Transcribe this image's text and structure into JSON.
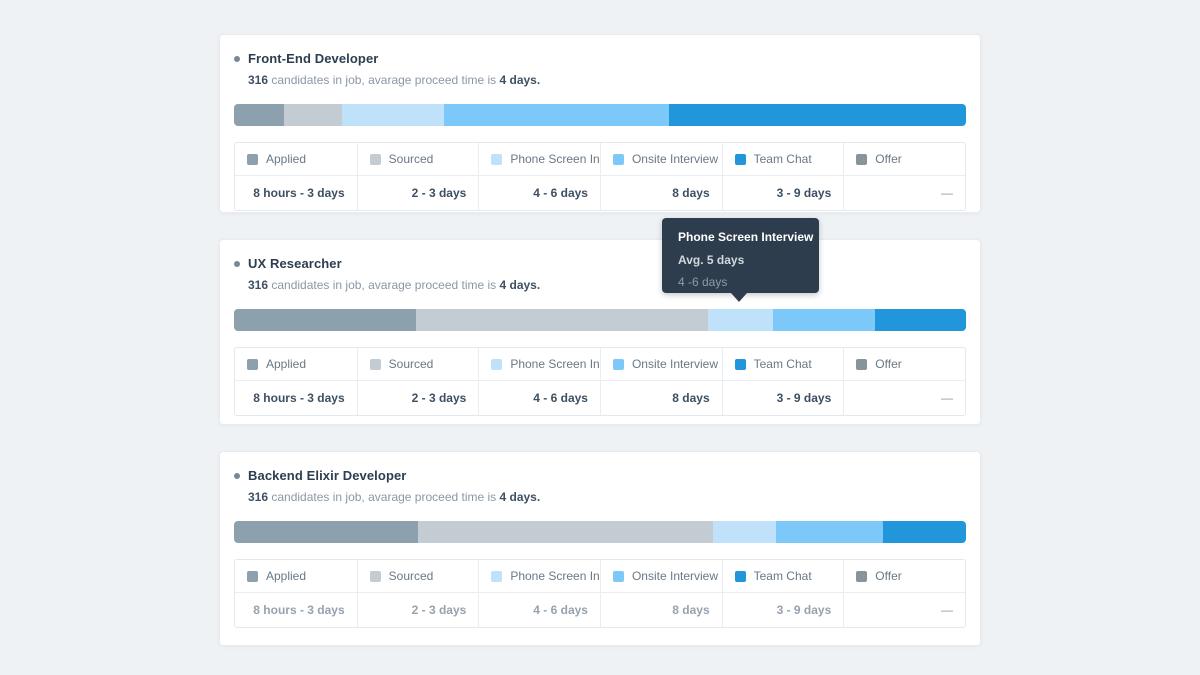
{
  "page": {
    "background": "#eff2f5"
  },
  "colors": {
    "applied": "#8CA1AD",
    "sourced": "#C3CCD3",
    "phone_screen": "#BFE2FA",
    "onsite": "#7CC8F8",
    "team_chat": "#2196DB",
    "offer": "#879599"
  },
  "tooltip": {
    "title": "Phone Screen Interview",
    "avg": "Avg. 5 days",
    "range": "4 -6 days"
  },
  "cards": [
    {
      "title": "Front-End Developer",
      "count": "316",
      "sub_mid": " candidates in job, avarage proceed time is ",
      "sub_bold": "4 days.",
      "bar": [
        {
          "name": "applied",
          "w": "6.8%",
          "color": "#8CA1AD"
        },
        {
          "name": "sourced",
          "w": "7.9%",
          "color": "#C3CCD3"
        },
        {
          "name": "phone-screen",
          "w": "14.0%",
          "color": "#BFE2FA"
        },
        {
          "name": "onsite",
          "w": "30.7%",
          "color": "#7CC8F8"
        },
        {
          "name": "team-chat",
          "w": "40.6%",
          "color": "#2196DB"
        }
      ],
      "legend": [
        {
          "label": "Applied",
          "color": "#8CA1AD"
        },
        {
          "label": "Sourced",
          "color": "#C3CCD3"
        },
        {
          "label": "Phone Screen In...",
          "color": "#BFE2FA"
        },
        {
          "label": "Onsite Interview",
          "color": "#7CC8F8"
        },
        {
          "label": "Team Chat",
          "color": "#2196DB"
        },
        {
          "label": "Offer",
          "color": "#879599"
        }
      ],
      "durations": [
        "8 hours - 3 days",
        "2 - 3 days",
        "4 - 6 days",
        "8 days",
        "3 - 9 days",
        "—"
      ]
    },
    {
      "title": "UX Researcher",
      "count": "316",
      "sub_mid": " candidates in job, avarage proceed time is ",
      "sub_bold": "4 days.",
      "bar": [
        {
          "name": "applied",
          "w": "24.8%",
          "color": "#8CA1AD"
        },
        {
          "name": "sourced",
          "w": "40.0%",
          "color": "#C3CCD3"
        },
        {
          "name": "phone-screen",
          "w": "8.9%",
          "color": "#BFE2FA"
        },
        {
          "name": "onsite",
          "w": "13.9%",
          "color": "#7CC8F8"
        },
        {
          "name": "team-chat",
          "w": "12.4%",
          "color": "#2196DB"
        }
      ],
      "legend": [
        {
          "label": "Applied",
          "color": "#8CA1AD"
        },
        {
          "label": "Sourced",
          "color": "#C3CCD3"
        },
        {
          "label": "Phone Screen In...",
          "color": "#BFE2FA"
        },
        {
          "label": "Onsite Interview",
          "color": "#7CC8F8"
        },
        {
          "label": "Team Chat",
          "color": "#2196DB"
        },
        {
          "label": "Offer",
          "color": "#879599"
        }
      ],
      "durations": [
        "8 hours - 3 days",
        "2 - 3 days",
        "4 - 6 days",
        "8 days",
        "3 - 9 days",
        "—"
      ]
    },
    {
      "title": "Backend Elixir Developer",
      "count": "316",
      "sub_mid": " candidates in job, avarage proceed time is ",
      "sub_bold": "4 days.",
      "bar": [
        {
          "name": "applied",
          "w": "25.1%",
          "color": "#8CA1AD"
        },
        {
          "name": "sourced",
          "w": "40.3%",
          "color": "#C3CCD3"
        },
        {
          "name": "phone-screen",
          "w": "8.7%",
          "color": "#BFE2FA"
        },
        {
          "name": "onsite",
          "w": "14.5%",
          "color": "#7CC8F8"
        },
        {
          "name": "team-chat",
          "w": "11.4%",
          "color": "#2196DB"
        }
      ],
      "legend": [
        {
          "label": "Applied",
          "color": "#8CA1AD"
        },
        {
          "label": "Sourced",
          "color": "#C3CCD3"
        },
        {
          "label": "Phone Screen In...",
          "color": "#BFE2FA"
        },
        {
          "label": "Onsite Interview",
          "color": "#7CC8F8"
        },
        {
          "label": "Team Chat",
          "color": "#2196DB"
        },
        {
          "label": "Offer",
          "color": "#879599"
        }
      ],
      "durations": [
        "8 hours - 3 days",
        "2 - 3 days",
        "4 - 6 days",
        "8 days",
        "3 - 9 days",
        "—"
      ]
    }
  ]
}
